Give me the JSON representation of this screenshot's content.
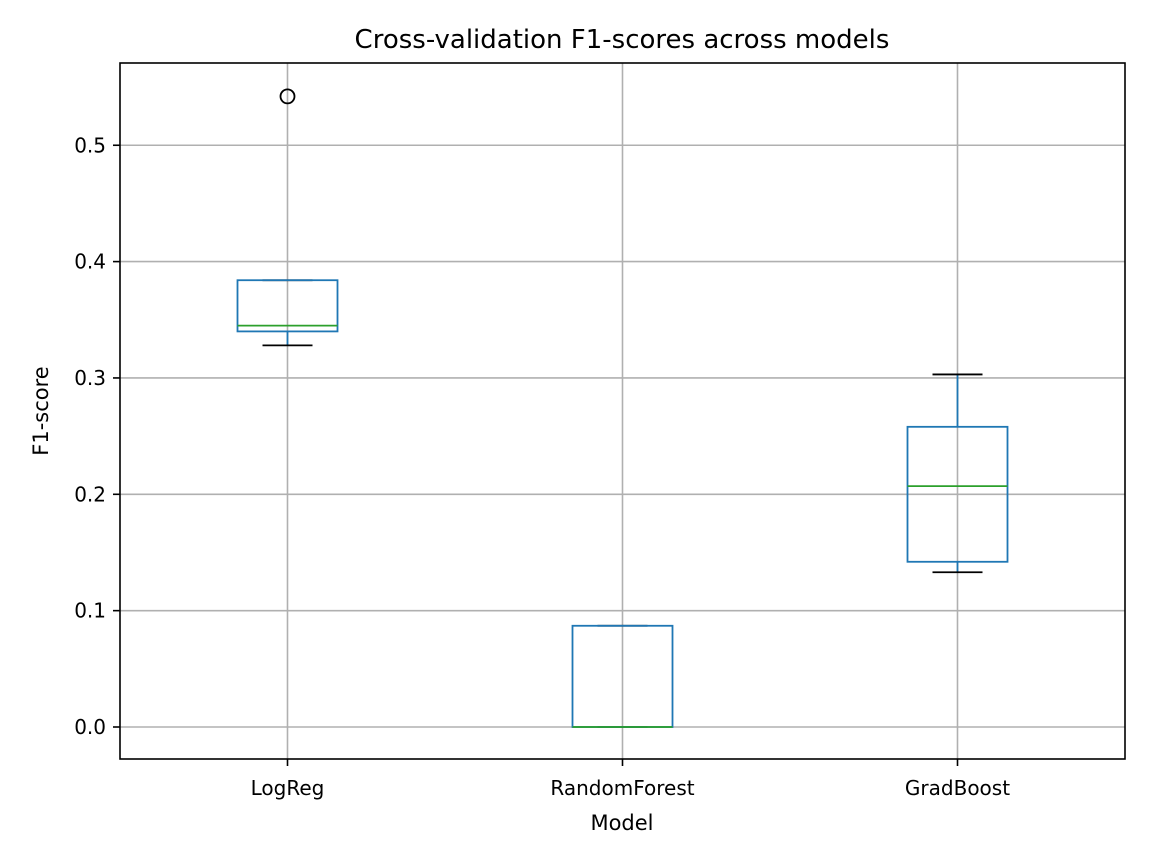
{
  "chart_data": {
    "type": "box",
    "title": "Cross-validation F1-scores across models",
    "xlabel": "Model",
    "ylabel": "F1-score",
    "ylim": [
      -0.027,
      0.57
    ],
    "yticks": [
      "0.0",
      "0.1",
      "0.2",
      "0.3",
      "0.4",
      "0.5"
    ],
    "grid": true,
    "categories": [
      "LogReg",
      "RandomForest",
      "GradBoost"
    ],
    "boxes": [
      {
        "name": "LogReg",
        "whisker_low": 0.328,
        "q1": 0.34,
        "median": 0.345,
        "q3": 0.384,
        "whisker_high": 0.384,
        "outliers": [
          0.542
        ]
      },
      {
        "name": "RandomForest",
        "whisker_low": 0.0,
        "q1": 0.0,
        "median": 0.0,
        "q3": 0.087,
        "whisker_high": 0.087,
        "outliers": []
      },
      {
        "name": "GradBoost",
        "whisker_low": 0.133,
        "q1": 0.142,
        "median": 0.207,
        "q3": 0.258,
        "whisker_high": 0.303,
        "outliers": []
      }
    ],
    "colors": {
      "box": "#1f77b4",
      "median": "#2ca02c",
      "whisker_cap": "#000000",
      "grid": "#b0b0b0"
    }
  }
}
